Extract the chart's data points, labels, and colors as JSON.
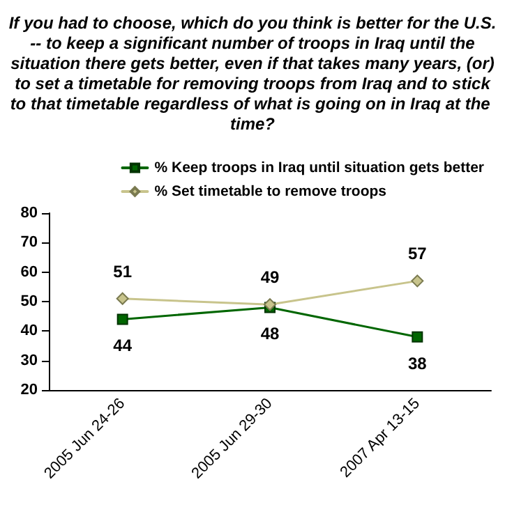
{
  "chart_data": {
    "type": "line",
    "title": "If you had to choose, which do you think is better for the U.S. -- to keep a significant number of troops in Iraq until the situation there gets better, even if that takes many years, (or) to set a timetable for removing troops from Iraq and to stick to that timetable regardless of what is going on in Iraq at the time?",
    "categories": [
      "2005 Jun 24-26",
      "2005 Jun 29-30",
      "2007 Apr 13-15"
    ],
    "series": [
      {
        "name": "% Keep troops in Iraq until situation gets better",
        "color": "#006600",
        "marker": "square",
        "values": [
          44,
          48,
          38
        ]
      },
      {
        "name": "% Set timetable to remove troops",
        "color": "#c8c48c",
        "marker": "diamond",
        "values": [
          51,
          49,
          57
        ]
      }
    ],
    "ylim": [
      20,
      80
    ],
    "yticks": [
      20,
      30,
      40,
      50,
      60,
      70,
      80
    ],
    "data_labels": true,
    "grid": false,
    "legend": "top right"
  }
}
